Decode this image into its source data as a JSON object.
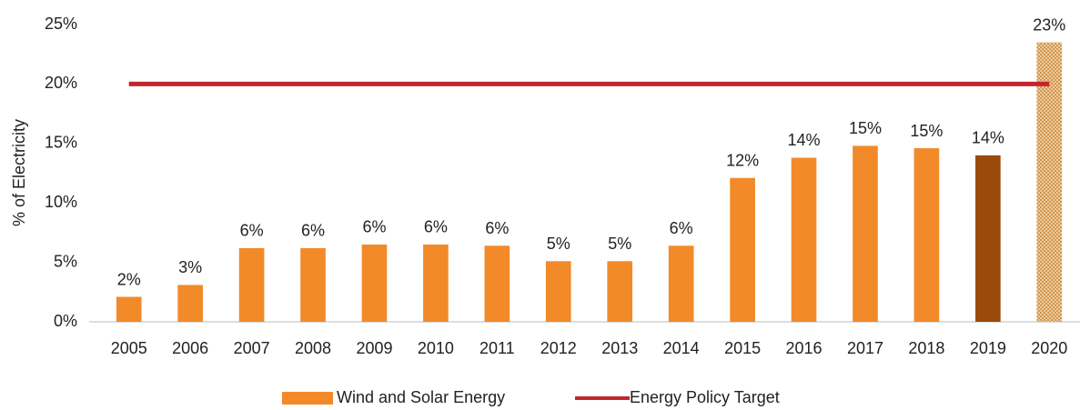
{
  "chart_data": {
    "type": "bar",
    "y_label": "% of Electricity",
    "categories": [
      "2005",
      "2006",
      "2007",
      "2008",
      "2009",
      "2010",
      "2011",
      "2012",
      "2013",
      "2014",
      "2015",
      "2016",
      "2017",
      "2018",
      "2019",
      "2020"
    ],
    "series": [
      {
        "name": "Wind and Solar Energy",
        "color": "#f28a2a",
        "type": "bar",
        "colors": [
          "#f28a2a",
          "#f28a2a",
          "#f28a2a",
          "#f28a2a",
          "#f28a2a",
          "#f28a2a",
          "#f28a2a",
          "#f28a2a",
          "#f28a2a",
          "#f28a2a",
          "#f28a2a",
          "#f28a2a",
          "#f28a2a",
          "#f28a2a",
          "#9a4a0a",
          "#d9a066"
        ],
        "hatched": [
          "2020"
        ],
        "values": [
          2.1,
          3.1,
          6.2,
          6.2,
          6.5,
          6.5,
          6.4,
          5.1,
          5.1,
          6.4,
          12.1,
          13.8,
          14.8,
          14.6,
          14.0,
          23.5
        ],
        "value_labels": [
          "2%",
          "3%",
          "6%",
          "6%",
          "6%",
          "6%",
          "6%",
          "5%",
          "5%",
          "6%",
          "12%",
          "14%",
          "15%",
          "15%",
          "14%",
          "23%"
        ]
      },
      {
        "name": "Energy Policy Target",
        "color": "#c0272d",
        "type": "line",
        "values": [
          20,
          20,
          20,
          20,
          20,
          20,
          20,
          20,
          20,
          20,
          20,
          20,
          20,
          20,
          20,
          20
        ]
      }
    ],
    "ylim": [
      0,
      25
    ],
    "yticks": [
      {
        "value": 0,
        "label": "0%"
      },
      {
        "value": 5,
        "label": "5%"
      },
      {
        "value": 10,
        "label": "10%"
      },
      {
        "value": 15,
        "label": "15%"
      },
      {
        "value": 20,
        "label": "20%"
      },
      {
        "value": 25,
        "label": "25%"
      }
    ],
    "grid": false,
    "legend": "bottom"
  }
}
